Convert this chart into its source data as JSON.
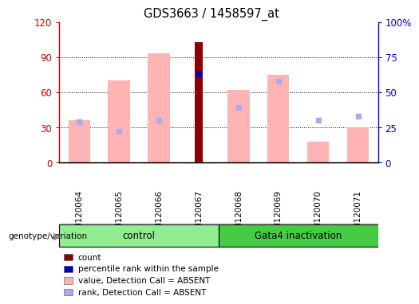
{
  "title": "GDS3663 / 1458597_at",
  "samples": [
    "GSM120064",
    "GSM120065",
    "GSM120066",
    "GSM120067",
    "GSM120068",
    "GSM120069",
    "GSM120070",
    "GSM120071"
  ],
  "count_values": [
    null,
    null,
    null,
    103,
    null,
    null,
    null,
    null
  ],
  "percentile_rank": [
    null,
    null,
    null,
    63,
    null,
    null,
    null,
    null
  ],
  "absent_value": [
    36,
    70,
    93,
    null,
    62,
    75,
    18,
    30
  ],
  "absent_rank": [
    29,
    22,
    30,
    null,
    39,
    58,
    30,
    33
  ],
  "left_ylim": [
    0,
    120
  ],
  "right_ylim": [
    0,
    100
  ],
  "left_yticks": [
    0,
    30,
    60,
    90,
    120
  ],
  "right_yticks": [
    0,
    25,
    50,
    75,
    100
  ],
  "left_yticklabels": [
    "0",
    "30",
    "60",
    "90",
    "120"
  ],
  "right_yticklabels": [
    "0",
    "25",
    "50",
    "75",
    "100%"
  ],
  "left_axis_color": "#cc0000",
  "right_axis_color": "#0000cc",
  "count_color": "#8b0000",
  "percentile_color": "#0000bb",
  "absent_value_color": "#ffb3b3",
  "absent_rank_color": "#aaaaee",
  "control_color": "#90ee90",
  "gata4_color": "#44cc44",
  "legend_items": [
    {
      "label": "count",
      "color": "#8b0000"
    },
    {
      "label": "percentile rank within the sample",
      "color": "#0000bb"
    },
    {
      "label": "value, Detection Call = ABSENT",
      "color": "#ffb3b3"
    },
    {
      "label": "rank, Detection Call = ABSENT",
      "color": "#aaaaee"
    }
  ],
  "genotype_label": "genotype/variation",
  "background_color": "#ffffff",
  "tick_area_color": "#cccccc",
  "grid_yticks": [
    30,
    60,
    90
  ]
}
